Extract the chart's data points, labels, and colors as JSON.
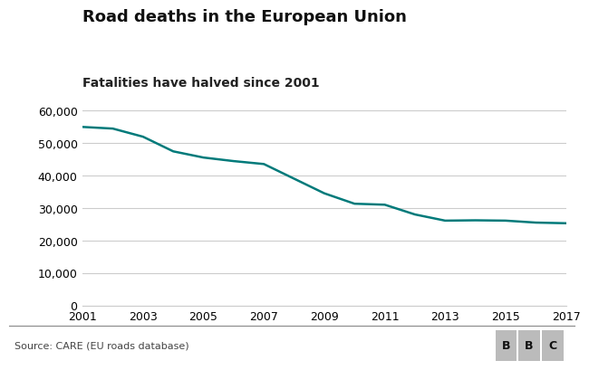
{
  "title": "Road deaths in the European Union",
  "subtitle": "Fatalities have halved since 2001",
  "source": "Source: CARE (EU roads database)",
  "years": [
    2001,
    2002,
    2003,
    2004,
    2005,
    2006,
    2007,
    2008,
    2009,
    2010,
    2011,
    2012,
    2013,
    2014,
    2015,
    2016,
    2017
  ],
  "values": [
    54900,
    54400,
    51900,
    47400,
    45500,
    44400,
    43500,
    39000,
    34500,
    31300,
    31000,
    28000,
    26100,
    26200,
    26100,
    25500,
    25300
  ],
  "line_color": "#007a7a",
  "line_width": 1.8,
  "background_color": "#ffffff",
  "grid_color": "#cccccc",
  "title_fontsize": 13,
  "subtitle_fontsize": 10,
  "tick_label_fontsize": 9,
  "source_fontsize": 8,
  "ylim": [
    0,
    65000
  ],
  "yticks": [
    0,
    10000,
    20000,
    30000,
    40000,
    50000,
    60000
  ],
  "xticks": [
    2001,
    2003,
    2005,
    2007,
    2009,
    2011,
    2013,
    2015,
    2017
  ],
  "bbc_box_color": "#bbbbbb",
  "bbc_text": "BBC"
}
